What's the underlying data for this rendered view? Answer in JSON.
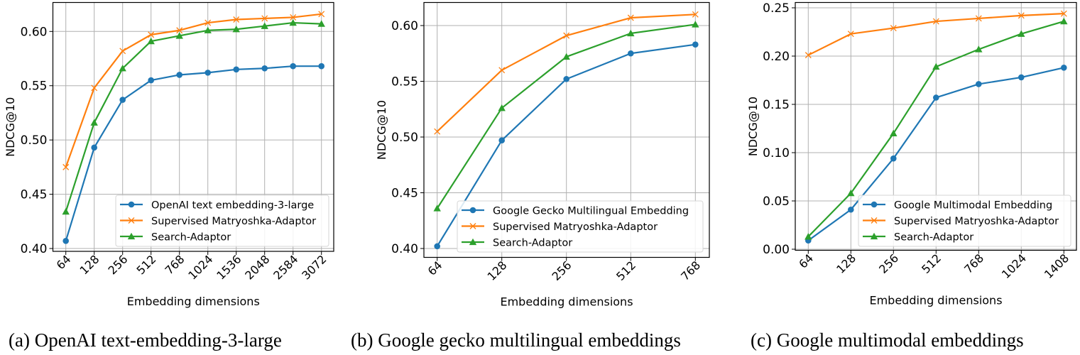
{
  "figure": {
    "captions": [
      "(a) OpenAI text-embedding-3-large",
      "(b) Google gecko multilingual embeddings",
      "(c) Google multimodal embeddings"
    ]
  },
  "colors": {
    "blue": "#1f77b4",
    "orange": "#ff7f0e",
    "green": "#2ca02c",
    "grid": "#b0b0b0"
  },
  "chart_data": [
    {
      "type": "line",
      "title": "",
      "caption": "(a) OpenAI text-embedding-3-large",
      "xlabel": "Embedding dimensions",
      "ylabel": "NDCG@10",
      "categories": [
        "64",
        "128",
        "256",
        "512",
        "768",
        "1024",
        "1536",
        "2048",
        "2584",
        "3072"
      ],
      "ylim": [
        0.395,
        0.626
      ],
      "yticks": [
        "0.40",
        "0.45",
        "0.50",
        "0.55",
        "0.60"
      ],
      "grid": true,
      "legend_position": "lower right",
      "series": [
        {
          "name": "OpenAI text embedding-3-large",
          "marker": "circle",
          "color": "#1f77b4",
          "values": [
            0.407,
            0.493,
            0.537,
            0.555,
            0.56,
            0.562,
            0.565,
            0.566,
            0.568,
            0.568
          ]
        },
        {
          "name": "Supervised Matryoshka-Adaptor",
          "marker": "x",
          "color": "#ff7f0e",
          "values": [
            0.475,
            0.548,
            0.582,
            0.597,
            0.601,
            0.608,
            0.611,
            0.612,
            0.613,
            0.616
          ]
        },
        {
          "name": "Search-Adaptor",
          "marker": "triangle",
          "color": "#2ca02c",
          "values": [
            0.434,
            0.516,
            0.566,
            0.591,
            0.596,
            0.601,
            0.602,
            0.605,
            0.608,
            0.607
          ]
        }
      ]
    },
    {
      "type": "line",
      "title": "",
      "caption": "(b) Google gecko multilingual embeddings",
      "xlabel": "Embedding dimensions",
      "ylabel": "NDCG@10",
      "categories": [
        "64",
        "128",
        "256",
        "512",
        "768"
      ],
      "ylim": [
        0.394,
        0.621
      ],
      "yticks": [
        "0.40",
        "0.45",
        "0.50",
        "0.55",
        "0.60"
      ],
      "grid": true,
      "legend_position": "lower right",
      "series": [
        {
          "name": "Google Gecko Multilingual Embedding",
          "marker": "circle",
          "color": "#1f77b4",
          "values": [
            0.402,
            0.497,
            0.552,
            0.575,
            0.583
          ]
        },
        {
          "name": "Supervised Matryoshka-Adaptor",
          "marker": "x",
          "color": "#ff7f0e",
          "values": [
            0.505,
            0.56,
            0.591,
            0.607,
            0.61
          ]
        },
        {
          "name": "Search-Adaptor",
          "marker": "triangle",
          "color": "#2ca02c",
          "values": [
            0.436,
            0.526,
            0.572,
            0.593,
            0.601
          ]
        }
      ]
    },
    {
      "type": "line",
      "title": "",
      "caption": "(c) Google multimodal embeddings",
      "xlabel": "Embedding dimensions",
      "ylabel": "NDCG@10",
      "categories": [
        "64",
        "128",
        "256",
        "512",
        "768",
        "1024",
        "1408"
      ],
      "ylim": [
        -0.001,
        0.255
      ],
      "yticks": [
        "0.00",
        "0.05",
        "0.10",
        "0.15",
        "0.20",
        "0.25"
      ],
      "grid": true,
      "legend_position": "lower right",
      "series": [
        {
          "name": "Google Multimodal Embedding",
          "marker": "circle",
          "color": "#1f77b4",
          "values": [
            0.009,
            0.041,
            0.094,
            0.157,
            0.171,
            0.178,
            0.188
          ]
        },
        {
          "name": "Supervised Matryoshka-Adaptor",
          "marker": "x",
          "color": "#ff7f0e",
          "values": [
            0.201,
            0.223,
            0.229,
            0.236,
            0.239,
            0.242,
            0.244
          ]
        },
        {
          "name": "Search-Adaptor",
          "marker": "triangle",
          "color": "#2ca02c",
          "values": [
            0.013,
            0.058,
            0.12,
            0.189,
            0.207,
            0.223,
            0.236
          ]
        }
      ]
    }
  ]
}
